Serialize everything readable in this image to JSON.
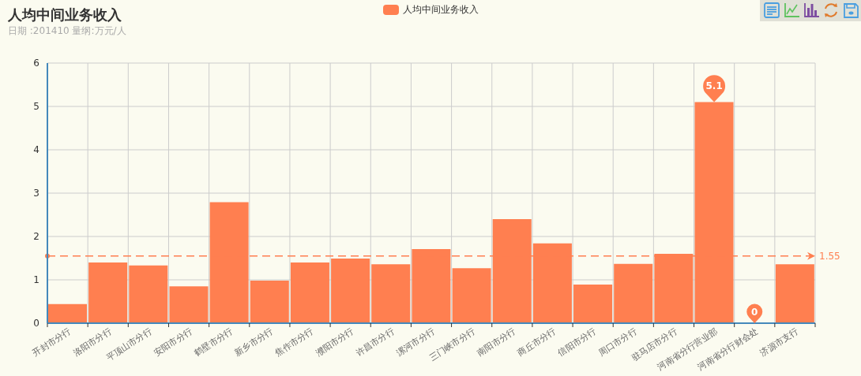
{
  "chart_data": {
    "type": "bar",
    "title": "人均中间业务收入",
    "subtitle": "日期 :201410 量纲:万元/人",
    "categories": [
      "开封市分行",
      "洛阳市分行",
      "平顶山市分行",
      "安阳市分行",
      "鹤壁市分行",
      "新乡市分行",
      "焦作市分行",
      "濮阳市分行",
      "许昌市分行",
      "漯河市分行",
      "三门峡市分行",
      "南阳市分行",
      "商丘市分行",
      "信阳市分行",
      "周口市分行",
      "驻马店市分行",
      "河南省分行营业部",
      "河南省分行财会处",
      "济源市支行"
    ],
    "series": [
      {
        "name": "人均中间业务收入",
        "color": "#ff7f50",
        "values": [
          0.44,
          1.4,
          1.33,
          0.85,
          2.79,
          0.98,
          1.4,
          1.49,
          1.36,
          1.71,
          1.27,
          2.4,
          1.84,
          0.89,
          1.37,
          1.6,
          5.1,
          0,
          1.36
        ],
        "value_labels": [
          null,
          null,
          null,
          null,
          null,
          null,
          null,
          null,
          null,
          null,
          null,
          null,
          null,
          null,
          null,
          null,
          "5.1",
          "0",
          null
        ]
      }
    ],
    "ylim": [
      0,
      6
    ],
    "yticks": [
      0,
      1,
      2,
      3,
      4,
      5,
      6
    ],
    "grid": true,
    "legend": "top",
    "ref_lines": [
      {
        "axis": "y",
        "value": 1.55,
        "label": "1.55",
        "color": "#ff7f50",
        "line_style": "dashed"
      }
    ]
  }
}
